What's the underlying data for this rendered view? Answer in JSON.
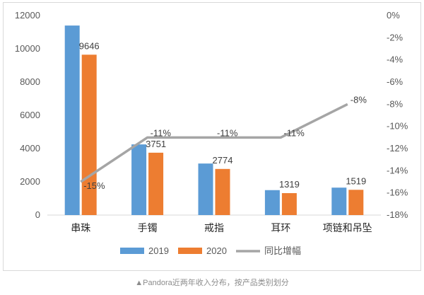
{
  "chart_data": {
    "type": "bar",
    "categories": [
      "串珠",
      "手镯",
      "戒指",
      "耳环",
      "项链和吊坠"
    ],
    "series": [
      {
        "name": "2019",
        "type": "bar",
        "axis": "left",
        "color": "#5b9bd5",
        "values": [
          11400,
          4250,
          3100,
          1500,
          1650
        ]
      },
      {
        "name": "2020",
        "type": "bar",
        "axis": "left",
        "color": "#ed7d31",
        "values": [
          9646,
          3751,
          2774,
          1319,
          1519
        ]
      },
      {
        "name": "同比增幅",
        "type": "line",
        "axis": "right",
        "color": "#a5a5a5",
        "values": [
          -15,
          -11,
          -11,
          -11,
          -8
        ]
      }
    ],
    "data_labels_2020": [
      "9646",
      "3751",
      "2774",
      "1319",
      "1519"
    ],
    "line_labels": [
      "-15%",
      "-11%",
      "-11%",
      "-11%",
      "-8%"
    ],
    "left_axis": {
      "ylim": [
        0,
        12000
      ],
      "ticks": [
        0,
        2000,
        4000,
        6000,
        8000,
        10000,
        12000
      ],
      "tick_labels": [
        "0",
        "2000",
        "4000",
        "6000",
        "8000",
        "10000",
        "12000"
      ]
    },
    "right_axis": {
      "ylim": [
        -18,
        0
      ],
      "ticks": [
        0,
        -2,
        -4,
        -6,
        -8,
        -10,
        -12,
        -14,
        -16,
        -18
      ],
      "tick_labels": [
        "0%",
        "-2%",
        "-4%",
        "-6%",
        "-8%",
        "-10%",
        "-12%",
        "-14%",
        "-16%",
        "-18%"
      ]
    },
    "legend": {
      "placement": "bottom",
      "labels": [
        "2019",
        "2020",
        "同比增幅"
      ]
    },
    "grid": false
  },
  "caption": "▲Pandora近两年收入分布，按产品类别划分"
}
